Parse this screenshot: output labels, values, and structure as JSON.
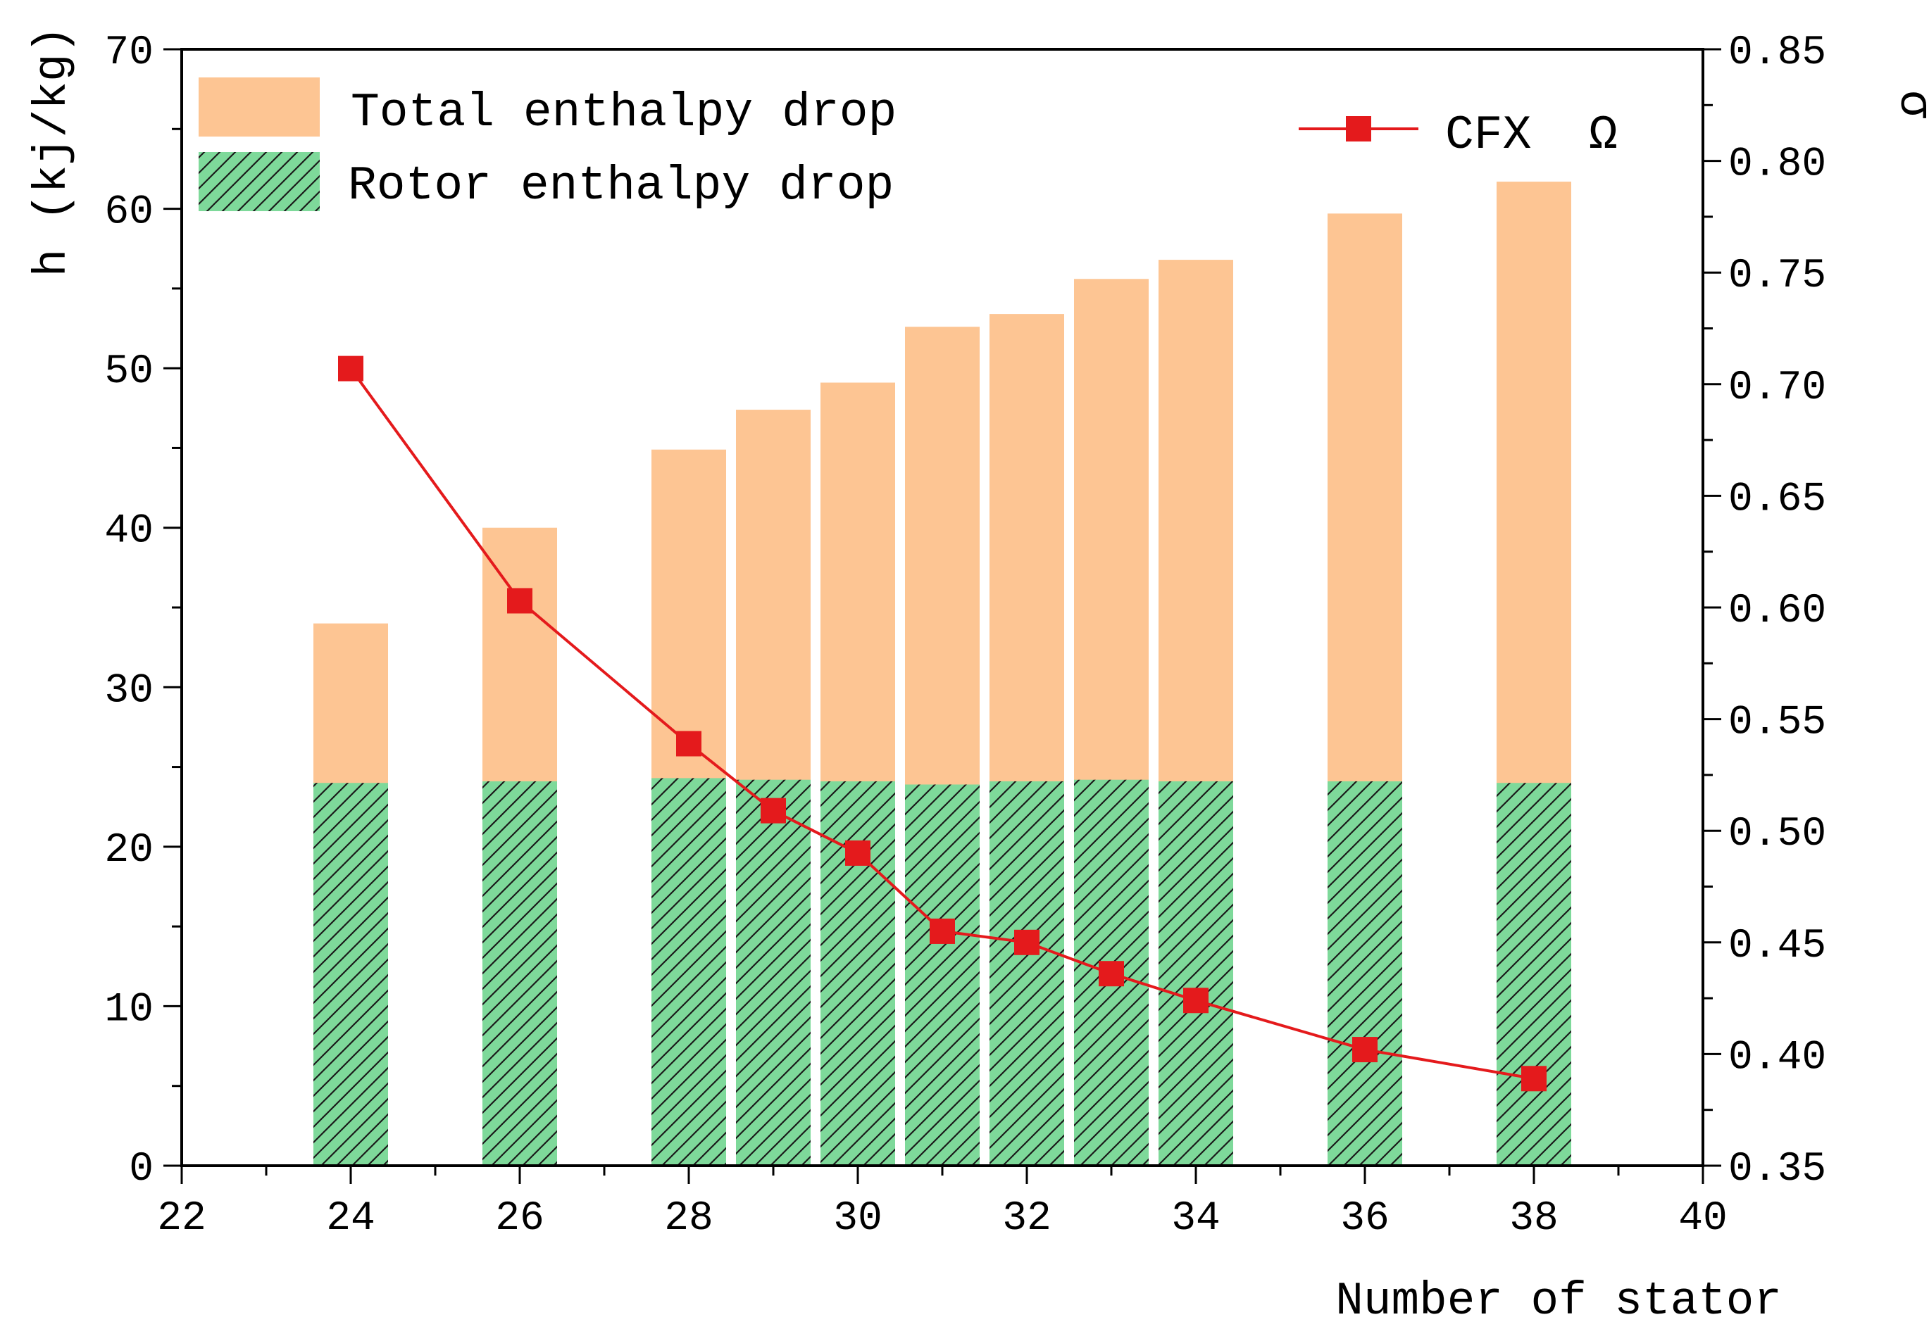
{
  "chart_data": {
    "type": "bar",
    "xlabel": "Number of stator",
    "ylabel_left": "h (kj/kg)",
    "ylabel_right": "σ",
    "xlim": [
      22,
      40
    ],
    "x_ticks": [
      "22",
      "24",
      "26",
      "28",
      "30",
      "32",
      "34",
      "36",
      "38",
      "40"
    ],
    "ylim_left": [
      0,
      70
    ],
    "y_left_ticks": [
      "0",
      "10",
      "20",
      "30",
      "40",
      "50",
      "60",
      "70"
    ],
    "ylim_right": [
      0.35,
      0.85
    ],
    "y_right_ticks": [
      "0.35",
      "0.40",
      "0.45",
      "0.50",
      "0.55",
      "0.60",
      "0.65",
      "0.70",
      "0.75",
      "0.80",
      "0.85"
    ],
    "x": [
      24,
      26,
      28,
      29,
      30,
      31,
      32,
      33,
      34,
      36,
      38
    ],
    "series": [
      {
        "name": "Total enthalpy drop",
        "axis": "left",
        "kind": "bar",
        "color": "#FDC593",
        "values": [
          34.0,
          40.0,
          44.9,
          47.4,
          49.1,
          52.6,
          53.4,
          55.6,
          56.8,
          59.7,
          61.7
        ]
      },
      {
        "name": "Rotor enthalpy drop",
        "axis": "left",
        "kind": "bar-hatched",
        "color": "#7ED99A",
        "values": [
          24.0,
          24.1,
          24.3,
          24.2,
          24.1,
          23.9,
          24.1,
          24.2,
          24.1,
          24.1,
          24.0
        ]
      },
      {
        "name": "CFX  Ω",
        "axis": "right",
        "kind": "line",
        "color": "#E41A1C",
        "values": [
          0.707,
          0.603,
          0.539,
          0.509,
          0.49,
          0.455,
          0.45,
          0.436,
          0.424,
          0.402,
          0.389
        ]
      }
    ],
    "legend": {
      "bars": [
        "Total enthalpy drop",
        "Rotor enthalpy drop"
      ],
      "line": "CFX  Ω"
    }
  }
}
